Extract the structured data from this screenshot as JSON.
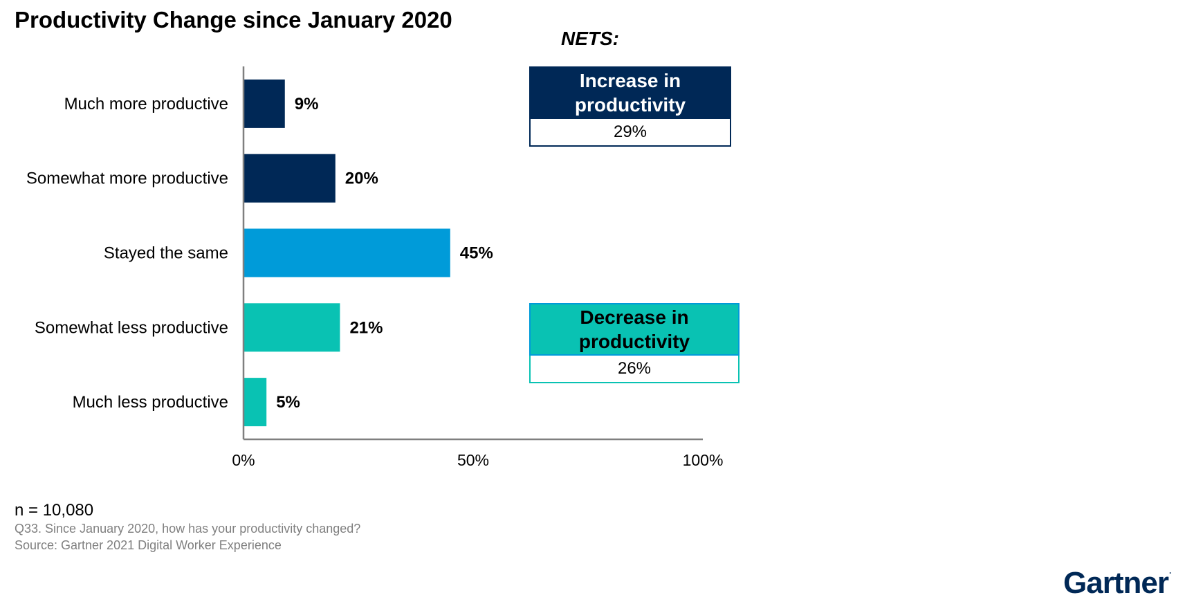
{
  "title": "Productivity Change since January 2020",
  "colors": {
    "navy": "#002856",
    "blue": "#009bd9",
    "teal": "#09c2b3",
    "axis": "#7f7f7f"
  },
  "chart_data": {
    "type": "bar",
    "orientation": "horizontal",
    "title": "Productivity Change since January 2020",
    "categories": [
      "Much more productive",
      "Somewhat more productive",
      "Stayed the same",
      "Somewhat less productive",
      "Much less productive"
    ],
    "values": [
      9,
      20,
      45,
      21,
      5
    ],
    "value_labels": [
      "9%",
      "20%",
      "45%",
      "21%",
      "5%"
    ],
    "bar_colors": [
      "#002856",
      "#002856",
      "#009bd9",
      "#09c2b3",
      "#09c2b3"
    ],
    "xlim": [
      0,
      100
    ],
    "xticks": [
      0,
      50,
      100
    ],
    "xtick_labels": [
      "0%",
      "50%",
      "100%"
    ],
    "grid": false,
    "legend": "none"
  },
  "nets": {
    "heading": "NETS:",
    "increase": {
      "label": "Increase in productivity",
      "value": "29%",
      "color": "#002856"
    },
    "decrease": {
      "label": "Decrease in productivity",
      "value": "26%",
      "color": "#09c2b3"
    }
  },
  "footnotes": {
    "n": "n = 10,080",
    "question": "Q33. Since January 2020, how has your productivity changed?",
    "source": "Source: Gartner 2021 Digital Worker Experience"
  },
  "brand": {
    "name": "Gartner",
    "mark": "."
  }
}
